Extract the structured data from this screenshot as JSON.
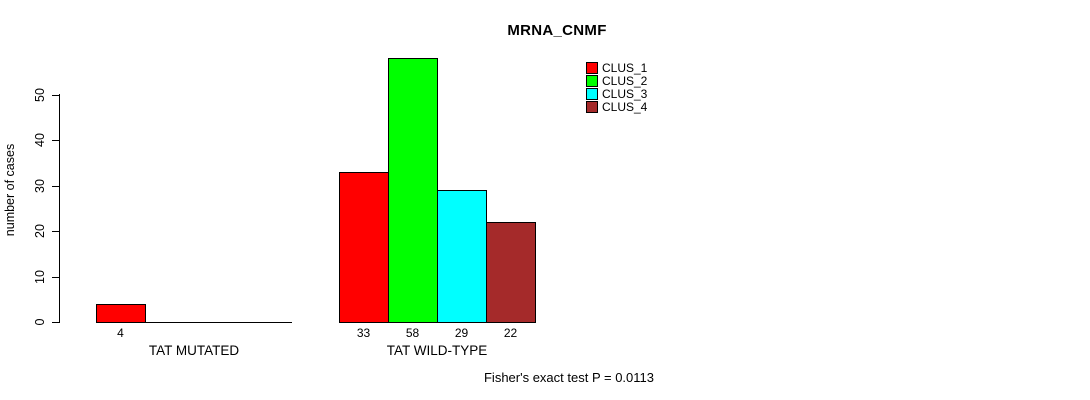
{
  "chart_data": {
    "type": "bar",
    "title": "MRNA_CNMF",
    "xlabel": "",
    "ylabel": "number of cases",
    "ylim": [
      0,
      58
    ],
    "yticks": [
      0,
      10,
      20,
      30,
      40,
      50
    ],
    "grid": false,
    "legend_position": "top-right",
    "groups": [
      {
        "label": "TAT MUTATED",
        "bars": [
          {
            "cluster": "CLUS_1",
            "value": 4,
            "color": "#ff0000"
          }
        ]
      },
      {
        "label": "TAT WILD-TYPE",
        "bars": [
          {
            "cluster": "CLUS_1",
            "value": 33,
            "color": "#ff0000"
          },
          {
            "cluster": "CLUS_2",
            "value": 58,
            "color": "#00ff00"
          },
          {
            "cluster": "CLUS_3",
            "value": 29,
            "color": "#00ffff"
          },
          {
            "cluster": "CLUS_4",
            "value": 22,
            "color": "#a52a2a"
          }
        ]
      }
    ],
    "legend": [
      {
        "label": "CLUS_1",
        "color": "#ff0000"
      },
      {
        "label": "CLUS_2",
        "color": "#00ff00"
      },
      {
        "label": "CLUS_3",
        "color": "#00ffff"
      },
      {
        "label": "CLUS_4",
        "color": "#a52a2a"
      }
    ],
    "annotation": "Fisher's exact test P = 0.0113"
  },
  "colors": {
    "axis": "#000000",
    "background": "#ffffff"
  }
}
